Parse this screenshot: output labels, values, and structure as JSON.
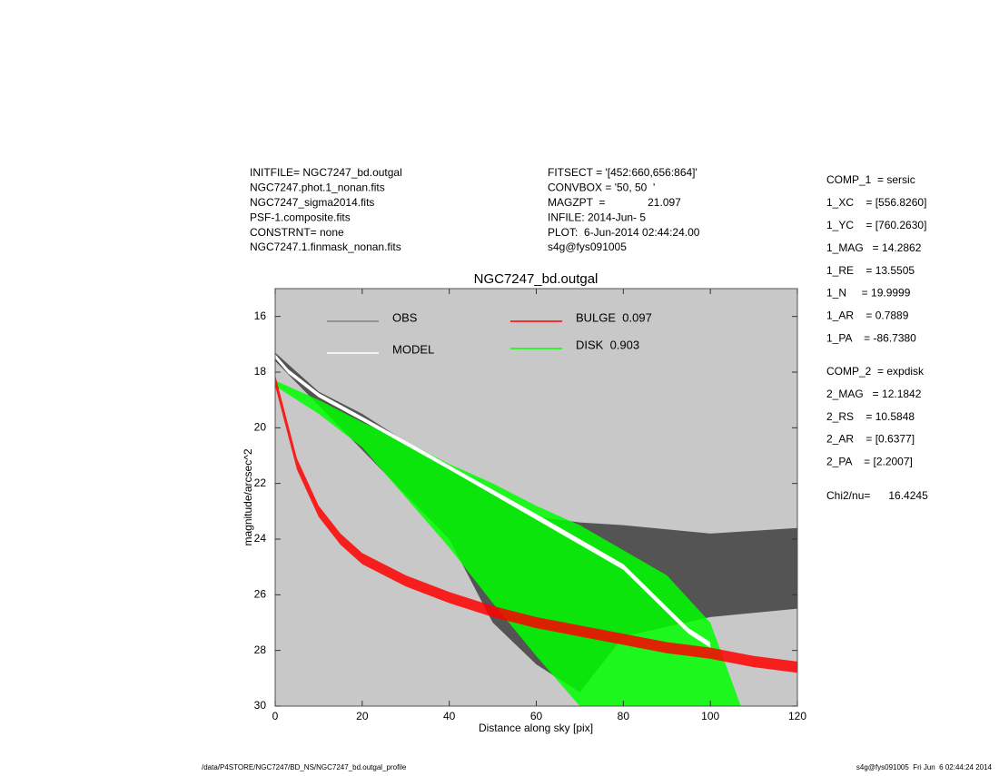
{
  "header": {
    "left": [
      "INITFILE= NGC7247_bd.outgal",
      "NGC7247.phot.1_nonan.fits",
      "NGC7247_sigma2014.fits",
      "PSF-1.composite.fits",
      "CONSTRNT= none",
      "NGC7247.1.finmask_nonan.fits"
    ],
    "middle": [
      "FITSECT = '[452:660,656:864]'",
      "CONVBOX = '50, 50  '",
      "MAGZPT  =              21.097",
      "INFILE: 2014-Jun- 5",
      "PLOT:  6-Jun-2014 02:44:24.00",
      "s4g@fys091005"
    ],
    "comp1": [
      "COMP_1  = sersic",
      "1_XC    = [556.8260]",
      "1_YC    = [760.2630]",
      "1_MAG   = 14.2862",
      "1_RE    = 13.5505",
      "1_N     = 19.9999",
      "1_AR    = 0.7889",
      "1_PA    = -86.7380"
    ],
    "comp2": [
      "COMP_2  = expdisk",
      "2_MAG   = 12.1842",
      "2_RS    = 10.5848",
      "2_AR    = [0.6377]",
      "2_PA    = [2.2007]"
    ],
    "chi": "Chi2/nu=      16.4245"
  },
  "footer": {
    "left": "/data/P4STORE/NGC7247/BD_NS/NGC7247_bd.outgal_profile",
    "right": "s4g@fys091005  Fri Jun  6 02:44:24 2014"
  },
  "chart_data": {
    "type": "band",
    "title": "NGC7247_bd.outgal",
    "x_label": "Distance along sky [pix]",
    "y_label": "magnitude/arcsec^2",
    "xlim": [
      0,
      120
    ],
    "ylim": [
      15,
      30
    ],
    "y_inverted": true,
    "xticks": [
      0,
      20,
      40,
      60,
      80,
      100,
      120
    ],
    "yticks": [
      16,
      18,
      20,
      22,
      24,
      26,
      28,
      30
    ],
    "background": "#c8c8c8",
    "series": [
      {
        "name": "OBS",
        "color": "#404040",
        "x": [
          0,
          10,
          20,
          40,
          50,
          60,
          70,
          80,
          100,
          120
        ],
        "values": [
          17.3,
          18.7,
          19.5,
          21.5,
          22.3,
          23.2,
          23.4,
          23.5,
          23.8,
          23.6
        ],
        "values_low": [
          17.6,
          19.2,
          20.8,
          24.0,
          27.0,
          28.5,
          29.5,
          27.5,
          26.8,
          26.5
        ]
      },
      {
        "name": "DISK  0.903",
        "color": "#00ff00",
        "x": [
          0,
          10,
          20,
          30,
          40,
          50,
          60,
          70,
          80,
          90,
          100,
          107
        ],
        "values": [
          18.3,
          19.0,
          19.8,
          20.5,
          21.3,
          22.0,
          22.8,
          23.5,
          24.4,
          25.3,
          27.0,
          30
        ],
        "values_low": [
          18.5,
          19.5,
          20.7,
          22.5,
          24.3,
          26.3,
          28.2,
          30,
          30,
          30,
          30,
          30
        ]
      },
      {
        "name": "BULGE  0.097",
        "color": "#ff0000",
        "x": [
          0,
          2,
          5,
          10,
          15,
          20,
          30,
          40,
          50,
          60,
          70,
          80,
          90,
          100,
          110,
          120
        ],
        "values": [
          18.1,
          19.3,
          21.1,
          22.8,
          23.8,
          24.5,
          25.3,
          25.9,
          26.4,
          26.8,
          27.1,
          27.4,
          27.7,
          27.9,
          28.2,
          28.4
        ],
        "values_low": [
          18.5,
          19.7,
          21.5,
          23.2,
          24.2,
          24.9,
          25.7,
          26.3,
          26.8,
          27.2,
          27.5,
          27.8,
          28.1,
          28.3,
          28.6,
          28.8
        ]
      },
      {
        "name": "MODEL",
        "color": "#ffffff",
        "x": [
          0,
          3,
          10,
          20,
          40,
          60,
          80,
          95,
          100
        ],
        "values": [
          17.35,
          17.9,
          18.75,
          19.6,
          21.35,
          23.1,
          24.9,
          27.2,
          27.7
        ],
        "values_low": [
          17.5,
          18.05,
          18.9,
          19.75,
          21.5,
          23.3,
          25.1,
          27.4,
          27.9
        ]
      }
    ]
  }
}
